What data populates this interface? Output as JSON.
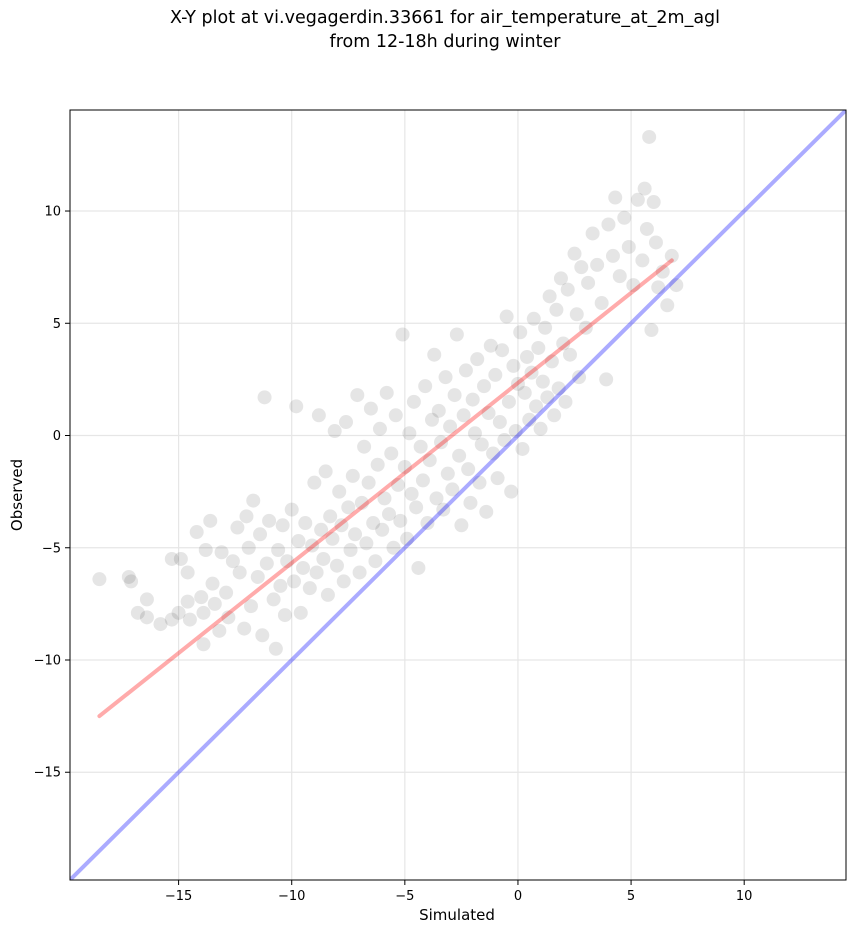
{
  "chart_data": {
    "type": "scatter",
    "title_line1": "X-Y plot at vi.vegagerdin.33661 for air_temperature_at_2m_agl",
    "title_line2": "from 12-18h during winter",
    "xlabel": "Simulated",
    "ylabel": "Observed",
    "xlim": [
      -19.8,
      14.5
    ],
    "ylim": [
      -19.8,
      14.5
    ],
    "xticks": [
      -15,
      -10,
      -5,
      0,
      5,
      10
    ],
    "yticks": [
      -15,
      -10,
      -5,
      0,
      5,
      10
    ],
    "xtick_labels": [
      "−15",
      "−10",
      "−5",
      "0",
      "5",
      "10"
    ],
    "ytick_labels": [
      "−15",
      "−10",
      "−5",
      "0",
      "5",
      "10"
    ],
    "grid": true,
    "identity_line": {
      "color": "#0000ff",
      "from": [
        -19.8,
        -19.8
      ],
      "to": [
        14.5,
        14.5
      ]
    },
    "fit_line": {
      "color": "#ff0000",
      "from": [
        -18.5,
        -12.5
      ],
      "to": [
        6.8,
        7.8
      ]
    },
    "point_color": "#000000",
    "points": [
      [
        -18.5,
        -6.4
      ],
      [
        -17.2,
        -6.3
      ],
      [
        -17.1,
        -6.5
      ],
      [
        -16.8,
        -7.9
      ],
      [
        -16.4,
        -7.3
      ],
      [
        -16.4,
        -8.1
      ],
      [
        -15.8,
        -8.4
      ],
      [
        -15.3,
        -8.2
      ],
      [
        -15.3,
        -5.5
      ],
      [
        -15.0,
        -7.9
      ],
      [
        -14.9,
        -5.5
      ],
      [
        -14.6,
        -7.4
      ],
      [
        -14.6,
        -6.1
      ],
      [
        -14.5,
        -8.2
      ],
      [
        -14.2,
        -4.3
      ],
      [
        -14.0,
        -7.2
      ],
      [
        -13.9,
        -9.3
      ],
      [
        -13.9,
        -7.9
      ],
      [
        -13.8,
        -5.1
      ],
      [
        -13.6,
        -3.8
      ],
      [
        -13.5,
        -6.6
      ],
      [
        -13.4,
        -7.5
      ],
      [
        -13.2,
        -8.7
      ],
      [
        -13.1,
        -5.2
      ],
      [
        -12.9,
        -7.0
      ],
      [
        -12.8,
        -8.1
      ],
      [
        -12.6,
        -5.6
      ],
      [
        -12.4,
        -4.1
      ],
      [
        -12.3,
        -6.1
      ],
      [
        -12.1,
        -8.6
      ],
      [
        -12.0,
        -3.6
      ],
      [
        -11.9,
        -5.0
      ],
      [
        -11.8,
        -7.6
      ],
      [
        -11.7,
        -2.9
      ],
      [
        -11.5,
        -6.3
      ],
      [
        -11.4,
        -4.4
      ],
      [
        -11.3,
        -8.9
      ],
      [
        -11.2,
        1.7
      ],
      [
        -11.1,
        -5.7
      ],
      [
        -11.0,
        -3.8
      ],
      [
        -10.8,
        -7.3
      ],
      [
        -10.7,
        -9.5
      ],
      [
        -10.6,
        -5.1
      ],
      [
        -10.5,
        -6.7
      ],
      [
        -10.4,
        -4.0
      ],
      [
        -10.3,
        -8.0
      ],
      [
        -10.2,
        -5.6
      ],
      [
        -10.0,
        -3.3
      ],
      [
        -9.9,
        -6.5
      ],
      [
        -9.8,
        1.3
      ],
      [
        -9.7,
        -4.7
      ],
      [
        -9.6,
        -7.9
      ],
      [
        -9.5,
        -5.9
      ],
      [
        -9.4,
        -3.9
      ],
      [
        -9.2,
        -6.8
      ],
      [
        -9.1,
        -4.9
      ],
      [
        -9.0,
        -2.1
      ],
      [
        -8.9,
        -6.1
      ],
      [
        -8.8,
        0.9
      ],
      [
        -8.7,
        -4.2
      ],
      [
        -8.6,
        -5.5
      ],
      [
        -8.5,
        -1.6
      ],
      [
        -8.4,
        -7.1
      ],
      [
        -8.3,
        -3.6
      ],
      [
        -8.2,
        -4.6
      ],
      [
        -8.1,
        0.2
      ],
      [
        -8.0,
        -5.8
      ],
      [
        -7.9,
        -2.5
      ],
      [
        -7.8,
        -4.0
      ],
      [
        -7.7,
        -6.5
      ],
      [
        -7.6,
        0.6
      ],
      [
        -7.5,
        -3.2
      ],
      [
        -7.4,
        -5.1
      ],
      [
        -7.3,
        -1.8
      ],
      [
        -7.2,
        -4.4
      ],
      [
        -7.1,
        1.8
      ],
      [
        -7.0,
        -6.1
      ],
      [
        -6.9,
        -3.0
      ],
      [
        -6.8,
        -0.5
      ],
      [
        -6.7,
        -4.8
      ],
      [
        -6.6,
        -2.1
      ],
      [
        -6.5,
        1.2
      ],
      [
        -6.4,
        -3.9
      ],
      [
        -6.3,
        -5.6
      ],
      [
        -6.2,
        -1.3
      ],
      [
        -6.1,
        0.3
      ],
      [
        -6.0,
        -4.2
      ],
      [
        -5.9,
        -2.8
      ],
      [
        -5.8,
        1.9
      ],
      [
        -5.7,
        -3.5
      ],
      [
        -5.6,
        -0.8
      ],
      [
        -5.5,
        -5.0
      ],
      [
        -5.4,
        0.9
      ],
      [
        -5.3,
        -2.2
      ],
      [
        -5.2,
        -3.8
      ],
      [
        -5.1,
        4.5
      ],
      [
        -5.0,
        -1.4
      ],
      [
        -4.9,
        -4.6
      ],
      [
        -4.8,
        0.1
      ],
      [
        -4.7,
        -2.6
      ],
      [
        -4.6,
        1.5
      ],
      [
        -4.5,
        -3.2
      ],
      [
        -4.4,
        -5.9
      ],
      [
        -4.3,
        -0.5
      ],
      [
        -4.2,
        -2.0
      ],
      [
        -4.1,
        2.2
      ],
      [
        -4.0,
        -3.9
      ],
      [
        -3.9,
        -1.1
      ],
      [
        -3.8,
        0.7
      ],
      [
        -3.7,
        3.6
      ],
      [
        -3.6,
        -2.8
      ],
      [
        -3.5,
        1.1
      ],
      [
        -3.4,
        -0.3
      ],
      [
        -3.3,
        -3.3
      ],
      [
        -3.2,
        2.6
      ],
      [
        -3.1,
        -1.7
      ],
      [
        -3.0,
        0.4
      ],
      [
        -2.9,
        -2.4
      ],
      [
        -2.8,
        1.8
      ],
      [
        -2.7,
        4.5
      ],
      [
        -2.6,
        -0.9
      ],
      [
        -2.5,
        -4.0
      ],
      [
        -2.4,
        0.9
      ],
      [
        -2.3,
        2.9
      ],
      [
        -2.2,
        -1.5
      ],
      [
        -2.1,
        -3.0
      ],
      [
        -2.0,
        1.6
      ],
      [
        -1.9,
        0.1
      ],
      [
        -1.8,
        3.4
      ],
      [
        -1.7,
        -2.1
      ],
      [
        -1.6,
        -0.4
      ],
      [
        -1.5,
        2.2
      ],
      [
        -1.4,
        -3.4
      ],
      [
        -1.3,
        1.0
      ],
      [
        -1.2,
        4.0
      ],
      [
        -1.1,
        -0.8
      ],
      [
        -1.0,
        2.7
      ],
      [
        -0.9,
        -1.9
      ],
      [
        -0.8,
        0.6
      ],
      [
        -0.7,
        3.8
      ],
      [
        -0.6,
        -0.2
      ],
      [
        -0.5,
        5.3
      ],
      [
        -0.4,
        1.5
      ],
      [
        -0.3,
        -2.5
      ],
      [
        -0.2,
        3.1
      ],
      [
        -0.1,
        0.2
      ],
      [
        0.0,
        2.3
      ],
      [
        0.1,
        4.6
      ],
      [
        0.2,
        -0.6
      ],
      [
        0.3,
        1.9
      ],
      [
        0.4,
        3.5
      ],
      [
        0.5,
        0.7
      ],
      [
        0.6,
        2.8
      ],
      [
        0.7,
        5.2
      ],
      [
        0.8,
        1.3
      ],
      [
        0.9,
        3.9
      ],
      [
        1.0,
        0.3
      ],
      [
        1.1,
        2.4
      ],
      [
        1.2,
        4.8
      ],
      [
        1.3,
        1.7
      ],
      [
        1.4,
        6.2
      ],
      [
        1.5,
        3.3
      ],
      [
        1.6,
        0.9
      ],
      [
        1.7,
        5.6
      ],
      [
        1.8,
        2.1
      ],
      [
        1.9,
        7.0
      ],
      [
        2.0,
        4.1
      ],
      [
        2.1,
        1.5
      ],
      [
        2.2,
        6.5
      ],
      [
        2.3,
        3.6
      ],
      [
        2.5,
        8.1
      ],
      [
        2.6,
        5.4
      ],
      [
        2.7,
        2.6
      ],
      [
        2.8,
        7.5
      ],
      [
        3.0,
        4.8
      ],
      [
        3.1,
        6.8
      ],
      [
        3.3,
        9.0
      ],
      [
        3.5,
        7.6
      ],
      [
        3.7,
        5.9
      ],
      [
        3.9,
        2.5
      ],
      [
        4.0,
        9.4
      ],
      [
        4.2,
        8.0
      ],
      [
        4.3,
        10.6
      ],
      [
        4.5,
        7.1
      ],
      [
        4.7,
        9.7
      ],
      [
        4.9,
        8.4
      ],
      [
        5.1,
        6.7
      ],
      [
        5.3,
        10.5
      ],
      [
        5.5,
        7.8
      ],
      [
        5.6,
        11.0
      ],
      [
        5.7,
        9.2
      ],
      [
        5.8,
        13.3
      ],
      [
        5.9,
        4.7
      ],
      [
        6.0,
        10.4
      ],
      [
        6.1,
        8.6
      ],
      [
        6.2,
        6.6
      ],
      [
        6.4,
        7.3
      ],
      [
        6.6,
        5.8
      ],
      [
        6.8,
        8.0
      ],
      [
        7.0,
        6.7
      ]
    ]
  }
}
